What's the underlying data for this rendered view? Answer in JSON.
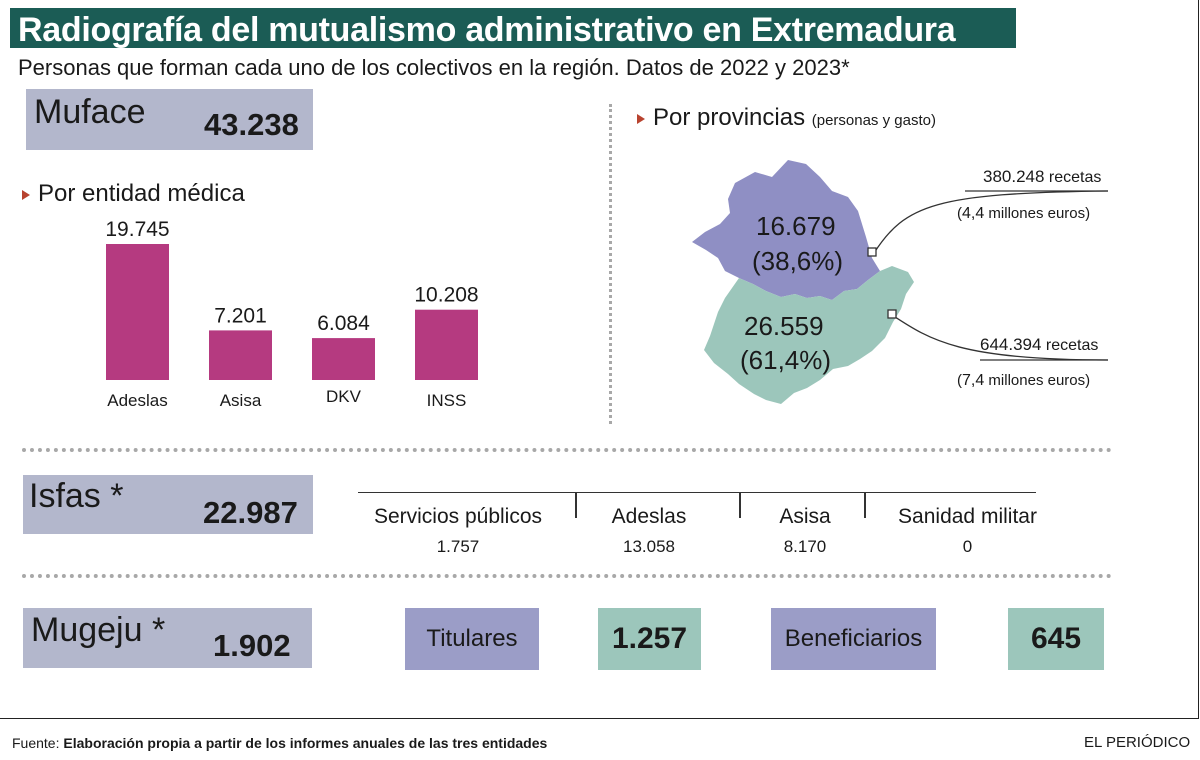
{
  "header": {
    "title": "Radiografía del mutualismo administrativo en Extremadura",
    "subtitle": "Personas que forman cada uno de los colectivos en la región. Datos de 2022 y 2023*"
  },
  "muface": {
    "label": "Muface",
    "total": "43.238",
    "by_entity_title": "Por entidad médica",
    "by_province_title": "Por provincias",
    "by_province_note": "(personas y gasto)"
  },
  "chart_data": {
    "type": "bar",
    "title": "Por entidad médica",
    "categories": [
      "Adeslas",
      "Asisa",
      "DKV",
      "INSS"
    ],
    "values": [
      19745,
      7201,
      6084,
      10208
    ],
    "value_labels": [
      "19.745",
      "7.201",
      "6.084",
      "10.208"
    ],
    "ylim": [
      0,
      19745
    ],
    "grid": false,
    "bar_color": "#b53a80"
  },
  "provinces": [
    {
      "value": "16.679",
      "share": "(38,6%)",
      "recipes_num": "380.248",
      "recipes_word": "recetas",
      "cost_num": "4,4",
      "cost_unit": "millones euros",
      "color": "#8f8fc4"
    },
    {
      "value": "26.559",
      "share": "(61,4%)",
      "recipes_num": "644.394",
      "recipes_word": "recetas",
      "cost_num": "7,4",
      "cost_unit": "millones euros",
      "color": "#9cc6bb"
    }
  ],
  "isfas": {
    "label": "Isfas *",
    "total": "22.987",
    "columns": [
      {
        "name": "Servicios públicos",
        "value": "1.757"
      },
      {
        "name": "Adeslas",
        "value": "13.058"
      },
      {
        "name": "Asisa",
        "value": "8.170"
      },
      {
        "name": "Sanidad militar",
        "value": "0"
      }
    ]
  },
  "mugeju": {
    "label": "Mugeju *",
    "total": "1.902",
    "titulares_label": "Titulares",
    "titulares_value": "1.257",
    "beneficiarios_label": "Beneficiarios",
    "beneficiarios_value": "645"
  },
  "footer": {
    "source_label": "Fuente:",
    "source_text": "Elaboración propia a partir de los informes anuales de las tres entidades",
    "brand": "EL PERIÓDICO"
  },
  "colors": {
    "title_bg": "#1b5c55",
    "box_lavender": "#b3b7cc",
    "box_purple": "#9b9dc7",
    "box_teal": "#9cc6bb",
    "bar": "#b53a80"
  }
}
